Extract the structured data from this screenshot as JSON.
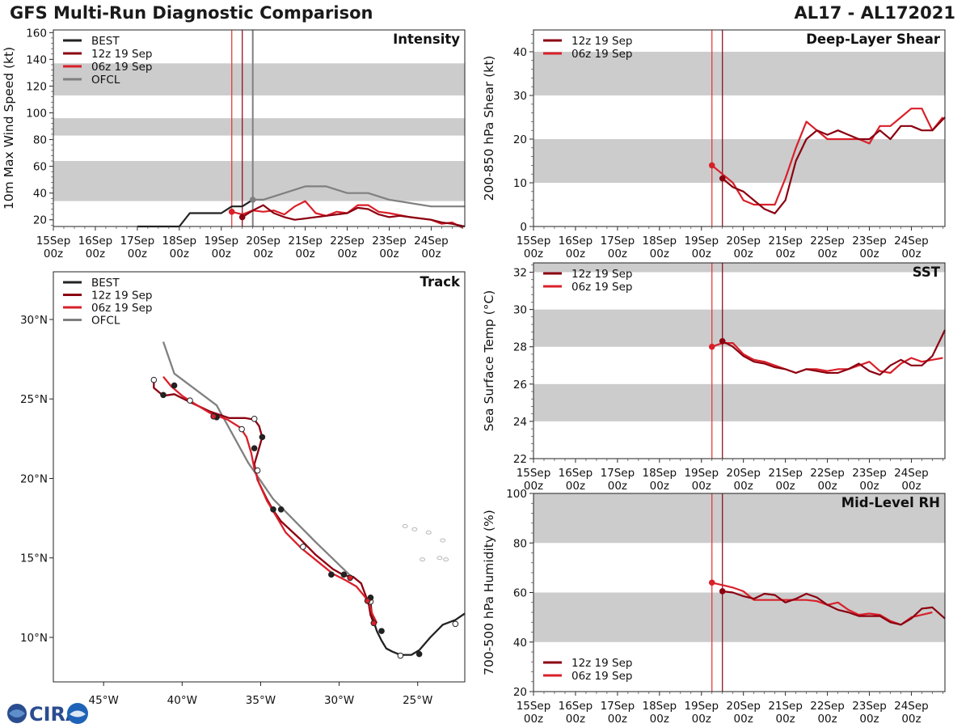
{
  "header": {
    "title": "GFS Multi-Run Diagnostic Comparison",
    "storm": "AL17 - AL172021"
  },
  "logo": {
    "text": "CIRA"
  },
  "colors": {
    "best": "#222222",
    "run12": "#8b0010",
    "run06": "#d9202a",
    "ofcl": "#808080",
    "band": "#cccccc",
    "vline06": "#e03030",
    "vline12": "#8b0010",
    "land": "#b8b8b8"
  },
  "time_axis": {
    "xlim": [
      0,
      9.8
    ],
    "ticks": [
      0,
      1,
      2,
      3,
      4,
      5,
      6,
      7,
      8,
      9
    ],
    "day_labels": [
      "15Sep",
      "16Sep",
      "17Sep",
      "18Sep",
      "19Sep",
      "20Sep",
      "21Sep",
      "22Sep",
      "23Sep",
      "24Sep"
    ],
    "hour_label": "00z",
    "init_lines": [
      {
        "name": "06z 19 Sep",
        "t": 4.25,
        "color": "#e03030"
      },
      {
        "name": "12z 19 Sep",
        "t": 4.5,
        "color": "#8b0010"
      }
    ]
  },
  "chart_data": [
    {
      "id": "intensity",
      "type": "line",
      "title": "Intensity",
      "ylabel": "10m Max Wind Speed (kt)",
      "ylim": [
        15,
        162
      ],
      "yticks": [
        20,
        40,
        60,
        80,
        100,
        120,
        140,
        160
      ],
      "bands": [
        [
          34,
          64
        ],
        [
          83,
          96
        ],
        [
          113,
          137
        ]
      ],
      "extra_vlines": [
        {
          "t": 4.75,
          "color": "#808080",
          "width": 2
        }
      ],
      "legend": [
        {
          "label": "BEST",
          "series": "best"
        },
        {
          "label": "12z 19 Sep",
          "series": "run12"
        },
        {
          "label": "06z 19 Sep",
          "series": "run06"
        },
        {
          "label": "OFCL",
          "series": "ofcl"
        }
      ],
      "series": [
        {
          "name": "BEST",
          "key": "best",
          "t": [
            2,
            2.5,
            3,
            3.25,
            3.5,
            3.75,
            4,
            4.25,
            4.5,
            4.75
          ],
          "y": [
            15,
            15,
            15,
            25,
            25,
            25,
            25,
            30,
            30,
            35
          ],
          "marker": false
        },
        {
          "name": "OFCL",
          "key": "ofcl",
          "t": [
            4.75,
            5,
            5.5,
            6,
            6.5,
            7,
            7.5,
            8,
            9,
            9.8
          ],
          "y": [
            35,
            35,
            40,
            45,
            45,
            40,
            40,
            35,
            30,
            30
          ],
          "start_marker": true
        },
        {
          "name": "06z 19 Sep",
          "key": "run06",
          "t": [
            4.25,
            4.5,
            4.75,
            5,
            5.25,
            5.5,
            5.75,
            6,
            6.25,
            6.5,
            6.75,
            7,
            7.25,
            7.5,
            7.75,
            8,
            8.5,
            9,
            9.25,
            9.5,
            9.75
          ],
          "y": [
            26,
            24,
            27,
            26,
            27,
            24,
            30,
            34,
            25,
            23,
            26,
            25,
            31,
            31,
            26,
            25,
            22,
            20,
            17,
            18,
            14
          ],
          "start_marker": true
        },
        {
          "name": "12z 19 Sep",
          "key": "run12",
          "t": [
            4.5,
            4.75,
            5,
            5.25,
            5.5,
            5.75,
            6,
            6.5,
            7,
            7.25,
            7.5,
            7.75,
            8,
            8.25,
            9,
            9.25,
            9.5,
            9.8
          ],
          "y": [
            22,
            27,
            31,
            25,
            22,
            20,
            21,
            23,
            25,
            29,
            28,
            24,
            22,
            23,
            20,
            18,
            17,
            15
          ],
          "start_marker": true
        }
      ]
    },
    {
      "id": "shear",
      "type": "line",
      "title": "Deep-Layer Shear",
      "ylabel": "200-850 hPa Shear (kt)",
      "ylim": [
        0,
        45
      ],
      "yticks": [
        0,
        10,
        20,
        30,
        40
      ],
      "bands": [
        [
          10,
          20
        ],
        [
          30,
          40
        ]
      ],
      "legend": [
        {
          "label": "12z 19 Sep",
          "series": "run12"
        },
        {
          "label": "06z 19 Sep",
          "series": "run06"
        }
      ],
      "series": [
        {
          "name": "06z 19 Sep",
          "key": "run06",
          "t": [
            4.25,
            4.5,
            4.75,
            5,
            5.25,
            5.5,
            5.75,
            6,
            6.25,
            6.5,
            6.75,
            7,
            7.25,
            7.5,
            7.75,
            8,
            8.25,
            8.5,
            8.75,
            9,
            9.25,
            9.5,
            9.75
          ],
          "y": [
            14,
            12,
            10,
            6,
            5,
            5,
            5,
            11,
            18,
            24,
            22,
            20,
            20,
            20,
            20,
            19,
            23,
            23,
            25,
            27,
            27,
            22,
            25
          ],
          "start_marker": true
        },
        {
          "name": "12z 19 Sep",
          "key": "run12",
          "t": [
            4.5,
            4.75,
            5,
            5.25,
            5.5,
            5.75,
            6,
            6.25,
            6.5,
            6.75,
            7,
            7.25,
            7.5,
            7.75,
            8,
            8.25,
            8.5,
            8.75,
            9,
            9.25,
            9.5,
            9.8
          ],
          "y": [
            11,
            9,
            8,
            6,
            4,
            3,
            6,
            15,
            20,
            22,
            21,
            22,
            21,
            20,
            20,
            22,
            20,
            23,
            23,
            22,
            22,
            25
          ],
          "start_marker": true
        }
      ]
    },
    {
      "id": "sst",
      "type": "line",
      "title": "SST",
      "ylabel": "Sea Surface Temp (°C)",
      "ylim": [
        22,
        32.5
      ],
      "yticks": [
        22,
        24,
        26,
        28,
        30,
        32
      ],
      "bands": [
        [
          24,
          26
        ],
        [
          28,
          30
        ],
        [
          32,
          32.5
        ]
      ],
      "legend": [
        {
          "label": "12z 19 Sep",
          "series": "run12"
        },
        {
          "label": "06z 19 Sep",
          "series": "run06"
        }
      ],
      "series": [
        {
          "name": "06z 19 Sep",
          "key": "run06",
          "t": [
            4.25,
            4.5,
            4.75,
            5,
            5.25,
            5.5,
            5.75,
            6,
            6.25,
            6.5,
            6.75,
            7,
            7.25,
            7.5,
            7.75,
            8,
            8.25,
            8.5,
            8.75,
            9,
            9.25,
            9.5,
            9.75
          ],
          "y": [
            28.0,
            28.2,
            28.2,
            27.6,
            27.3,
            27.2,
            27.0,
            26.8,
            26.6,
            26.8,
            26.8,
            26.7,
            26.8,
            26.8,
            27.0,
            27.2,
            26.7,
            26.6,
            27.1,
            27.4,
            27.2,
            27.3,
            27.4
          ],
          "start_marker": true
        },
        {
          "name": "12z 19 Sep",
          "key": "run12",
          "t": [
            4.5,
            4.75,
            5,
            5.25,
            5.5,
            5.75,
            6,
            6.25,
            6.5,
            6.75,
            7,
            7.25,
            7.5,
            7.75,
            8,
            8.25,
            8.5,
            8.75,
            9,
            9.25,
            9.5,
            9.8
          ],
          "y": [
            28.3,
            28.0,
            27.5,
            27.2,
            27.1,
            26.9,
            26.8,
            26.6,
            26.8,
            26.7,
            26.6,
            26.6,
            26.8,
            27.1,
            26.7,
            26.5,
            27.0,
            27.3,
            27.0,
            27.0,
            27.5,
            28.9
          ],
          "start_marker": true
        }
      ]
    },
    {
      "id": "rh",
      "type": "line",
      "title": "Mid-Level RH",
      "ylabel": "700-500 hPa Humidity (%)",
      "ylim": [
        20,
        100
      ],
      "yticks": [
        20,
        40,
        60,
        80,
        100
      ],
      "bands": [
        [
          40,
          60
        ],
        [
          80,
          100
        ]
      ],
      "legend_position": "bottom-left",
      "legend": [
        {
          "label": "12z 19 Sep",
          "series": "run12"
        },
        {
          "label": "06z 19 Sep",
          "series": "run06"
        }
      ],
      "series": [
        {
          "name": "06z 19 Sep",
          "key": "run06",
          "t": [
            4.25,
            4.5,
            4.75,
            5,
            5.25,
            5.5,
            5.75,
            6,
            6.25,
            6.5,
            6.75,
            7,
            7.25,
            7.5,
            7.75,
            8,
            8.25,
            8.5,
            8.75,
            9,
            9.25,
            9.5
          ],
          "y": [
            64,
            63,
            62,
            60.5,
            57,
            57,
            57,
            57,
            57,
            57,
            56.5,
            55,
            56,
            53,
            51,
            51.5,
            51,
            48.5,
            47,
            50,
            51,
            52
          ],
          "start_marker": true
        },
        {
          "name": "12z 19 Sep",
          "key": "run12",
          "t": [
            4.5,
            4.75,
            5,
            5.25,
            5.5,
            5.75,
            6,
            6.25,
            6.5,
            6.75,
            7,
            7.25,
            7.5,
            7.75,
            8,
            8.25,
            8.5,
            8.75,
            9,
            9.25,
            9.5,
            9.8
          ],
          "y": [
            60.5,
            60,
            58.5,
            57.5,
            59.5,
            59,
            56,
            57.5,
            59.5,
            58,
            55,
            53,
            52,
            50.5,
            50.5,
            50.5,
            48,
            47,
            49.5,
            53.5,
            54,
            49.5
          ],
          "start_marker": true
        }
      ]
    },
    {
      "id": "track",
      "type": "scatter",
      "title": "Track",
      "xlim": [
        -48.2,
        -22
      ],
      "ylim": [
        7.2,
        33
      ],
      "xticks": [
        -45,
        -40,
        -35,
        -30,
        -25
      ],
      "xticklabels": [
        "45°W",
        "40°W",
        "35°W",
        "30°W",
        "25°W"
      ],
      "yticks": [
        10,
        15,
        20,
        25,
        30
      ],
      "yticklabels": [
        "10°N",
        "15°N",
        "20°N",
        "25°N",
        "30°N"
      ],
      "legend": [
        {
          "label": "BEST",
          "series": "best"
        },
        {
          "label": "12z 19 Sep",
          "series": "run12"
        },
        {
          "label": "06z 19 Sep",
          "series": "run06"
        },
        {
          "label": "OFCL",
          "series": "ofcl"
        }
      ],
      "series": [
        {
          "name": "BEST",
          "key": "best",
          "lon": [
            -22,
            -22.6,
            -23.4,
            -24.2,
            -24.9,
            -25.4,
            -26.1,
            -26.6,
            -27.0,
            -27.3,
            -27.6,
            -27.9,
            -28.0
          ],
          "lat": [
            11.5,
            11.1,
            10.8,
            10.0,
            9.2,
            8.9,
            8.9,
            9.1,
            9.3,
            9.8,
            10.4,
            11.3,
            12.2
          ],
          "dots": [
            [
              -22.6,
              10.85,
              "open"
            ],
            [
              -24.9,
              8.95,
              "filled"
            ],
            [
              -26.1,
              8.85,
              "open"
            ],
            [
              -27.3,
              10.4,
              "filled"
            ],
            [
              -28.0,
              12.25,
              "open"
            ]
          ]
        },
        {
          "name": "OFCL",
          "key": "ofcl",
          "lon": [
            -29.2,
            -31.5,
            -34.2,
            -35.8,
            -37.8,
            -40.5,
            -41.2
          ],
          "lat": [
            13.8,
            16.0,
            18.7,
            21.0,
            24.6,
            26.6,
            28.6
          ],
          "dots": []
        },
        {
          "name": "12z 19 Sep",
          "key": "run12",
          "lon": [
            -27.8,
            -28.0,
            -28.1,
            -28.3,
            -28.6,
            -29.1,
            -29.7,
            -30.4,
            -31.5,
            -32.5,
            -33.7,
            -34.2,
            -34.6,
            -35.2,
            -35.4,
            -35.1,
            -34.9,
            -35.1,
            -35.4,
            -36.0,
            -37.0,
            -38.2,
            -39.5,
            -40.5,
            -41.2,
            -41.8,
            -41.8
          ],
          "lat": [
            10.9,
            11.4,
            12.0,
            12.6,
            13.4,
            13.8,
            13.9,
            14.3,
            15.2,
            16.2,
            17.3,
            18.0,
            18.7,
            19.9,
            20.9,
            21.9,
            22.6,
            23.3,
            23.7,
            23.8,
            23.8,
            24.2,
            24.8,
            25.3,
            25.2,
            25.7,
            26.2
          ],
          "dots": [
            [
              -28.0,
              12.5,
              "filled"
            ],
            [
              -29.7,
              13.95,
              "filled"
            ],
            [
              -30.5,
              13.95,
              "filled"
            ],
            [
              -33.7,
              18.05,
              "filled"
            ],
            [
              -34.2,
              18.05,
              "filled"
            ],
            [
              -35.4,
              21.9,
              "filled"
            ],
            [
              -34.9,
              22.6,
              "filled"
            ],
            [
              -35.4,
              23.75,
              "open"
            ],
            [
              -37.8,
              23.85,
              "filled"
            ],
            [
              -39.5,
              24.9,
              "open"
            ],
            [
              -40.5,
              25.85,
              "filled"
            ],
            [
              -41.2,
              25.25,
              "filled"
            ],
            [
              -41.8,
              26.2,
              "open"
            ]
          ]
        },
        {
          "name": "06z 19 Sep",
          "key": "run06",
          "lon": [
            -27.6,
            -27.9,
            -28.1,
            -28.4,
            -28.9,
            -29.6,
            -30.4,
            -31.4,
            -32.4,
            -33.4,
            -34.0,
            -34.6,
            -35.1,
            -35.4,
            -35.6,
            -35.9,
            -36.3,
            -37.1,
            -38.2,
            -39.2,
            -40.0,
            -40.7,
            -41.2
          ],
          "lat": [
            10.9,
            11.5,
            12.2,
            12.6,
            13.2,
            13.6,
            14.0,
            14.8,
            15.6,
            16.6,
            17.6,
            18.6,
            19.7,
            20.6,
            21.6,
            22.6,
            23.2,
            23.7,
            24.1,
            24.7,
            25.2,
            25.8,
            26.4
          ],
          "dots": [
            [
              -27.8,
              10.9,
              "filled"
            ],
            [
              -28.2,
              12.3,
              "filled"
            ],
            [
              -29.3,
              13.75,
              "filled"
            ],
            [
              -32.3,
              15.7,
              "open"
            ],
            [
              -35.2,
              20.5,
              "open"
            ],
            [
              -36.2,
              23.1,
              "open"
            ],
            [
              -38.0,
              23.9,
              "filled"
            ]
          ]
        }
      ]
    }
  ]
}
